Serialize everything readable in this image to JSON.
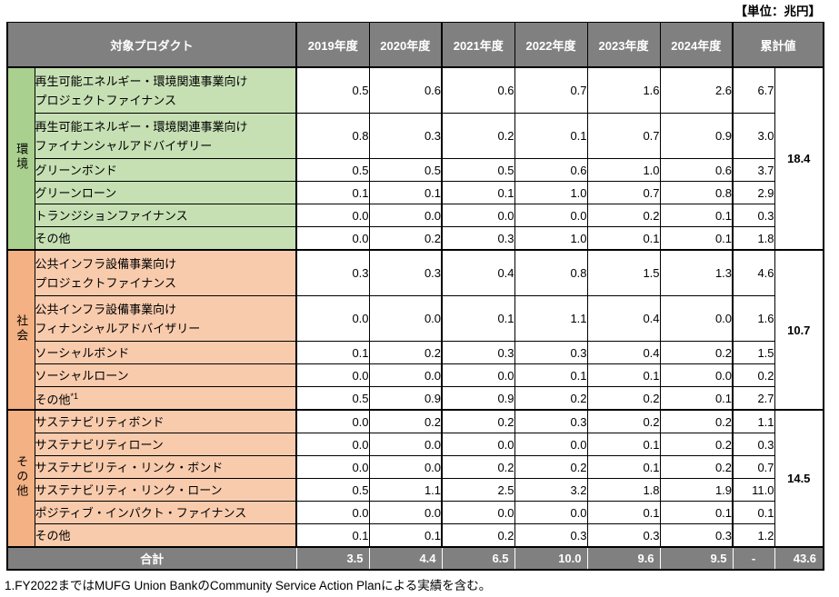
{
  "unit_label": "【単位：兆円】",
  "footnote": "1.FY2022まではMUFG Union BankのCommunity Service Action Planによる実績を含む。",
  "colors": {
    "header_bg": "#808080",
    "header_text": "#ffffff",
    "env_category_bg": "#A9D08E",
    "env_product_bg": "#C6E0B4",
    "social_category_bg": "#F4B183",
    "social_product_bg": "#F8CBAD",
    "other_category_bg": "#F4B183",
    "other_product_bg": "#F8CBAD",
    "border": "#000000"
  },
  "table": {
    "header": {
      "product_label": "対象プロダクト",
      "year_labels": [
        "2019年度",
        "2020年度",
        "2021年度",
        "2022年度",
        "2023年度",
        "2024年度"
      ],
      "cumulative_label": "累計値"
    },
    "sections": [
      {
        "id": "environment",
        "category": "環境",
        "category_bg": "#A9D08E",
        "product_bg": "#C6E0B4",
        "group_total": "18.4",
        "rows": [
          {
            "lines": [
              "再生可能エネルギー・環境関連事業向け",
              "プロジェクトファイナンス"
            ],
            "values": [
              "0.5",
              "0.6",
              "0.6",
              "0.7",
              "1.6",
              "2.6"
            ],
            "cumulative": "6.7"
          },
          {
            "lines": [
              "再生可能エネルギー・環境関連事業向け",
              "ファイナンシャルアドバイザリー"
            ],
            "values": [
              "0.8",
              "0.3",
              "0.2",
              "0.1",
              "0.7",
              "0.9"
            ],
            "cumulative": "3.0"
          },
          {
            "lines": [
              "グリーンボンド"
            ],
            "values": [
              "0.5",
              "0.5",
              "0.5",
              "0.6",
              "1.0",
              "0.6"
            ],
            "cumulative": "3.7"
          },
          {
            "lines": [
              "グリーンローン"
            ],
            "values": [
              "0.1",
              "0.1",
              "0.1",
              "1.0",
              "0.7",
              "0.8"
            ],
            "cumulative": "2.9"
          },
          {
            "lines": [
              "トランジションファイナンス"
            ],
            "values": [
              "0.0",
              "0.0",
              "0.0",
              "0.0",
              "0.2",
              "0.1"
            ],
            "cumulative": "0.3"
          },
          {
            "lines": [
              "その他"
            ],
            "values": [
              "0.0",
              "0.2",
              "0.3",
              "1.0",
              "0.1",
              "0.1"
            ],
            "cumulative": "1.8"
          }
        ]
      },
      {
        "id": "social",
        "category": "社会",
        "category_bg": "#F4B183",
        "product_bg": "#F8CBAD",
        "group_total": "10.7",
        "rows": [
          {
            "lines": [
              "公共インフラ設備事業向け",
              "プロジェクトファイナンス"
            ],
            "values": [
              "0.3",
              "0.3",
              "0.4",
              "0.8",
              "1.5",
              "1.3"
            ],
            "cumulative": "4.6"
          },
          {
            "lines": [
              "公共インフラ設備事業向け",
              "フィナンシャルアドバイザリー"
            ],
            "values": [
              "0.0",
              "0.0",
              "0.1",
              "1.1",
              "0.4",
              "0.0"
            ],
            "cumulative": "1.6"
          },
          {
            "lines": [
              "ソーシャルボンド"
            ],
            "values": [
              "0.1",
              "0.2",
              "0.3",
              "0.3",
              "0.4",
              "0.2"
            ],
            "cumulative": "1.5"
          },
          {
            "lines": [
              "ソーシャルローン"
            ],
            "values": [
              "0.0",
              "0.0",
              "0.0",
              "0.1",
              "0.1",
              "0.0"
            ],
            "cumulative": "0.2"
          },
          {
            "lines": [
              "その他"
            ],
            "sup": "*1",
            "values": [
              "0.5",
              "0.9",
              "0.9",
              "0.2",
              "0.2",
              "0.1"
            ],
            "cumulative": "2.7"
          }
        ]
      },
      {
        "id": "other",
        "category": "その他",
        "category_bg": "#F4B183",
        "product_bg": "#F8CBAD",
        "group_total": "14.5",
        "rows": [
          {
            "lines": [
              "サステナビリティボンド"
            ],
            "values": [
              "0.0",
              "0.2",
              "0.2",
              "0.3",
              "0.2",
              "0.2"
            ],
            "cumulative": "1.1"
          },
          {
            "lines": [
              "サステナビリティローン"
            ],
            "values": [
              "0.0",
              "0.0",
              "0.0",
              "0.0",
              "0.1",
              "0.2"
            ],
            "cumulative": "0.3"
          },
          {
            "lines": [
              "サステナビリティ・リンク・ボンド"
            ],
            "values": [
              "0.0",
              "0.0",
              "0.2",
              "0.2",
              "0.1",
              "0.2"
            ],
            "cumulative": "0.7"
          },
          {
            "lines": [
              "サステナビリティ・リンク・ローン"
            ],
            "values": [
              "0.5",
              "1.1",
              "2.5",
              "3.2",
              "1.8",
              "1.9"
            ],
            "cumulative": "11.0"
          },
          {
            "lines": [
              "ポジティブ・インパクト・ファイナンス"
            ],
            "values": [
              "0.0",
              "0.0",
              "0.0",
              "0.0",
              "0.1",
              "0.1"
            ],
            "cumulative": "0.1"
          },
          {
            "lines": [
              "その他"
            ],
            "values": [
              "0.1",
              "0.1",
              "0.2",
              "0.3",
              "0.3",
              "0.3"
            ],
            "cumulative": "1.2"
          }
        ]
      }
    ],
    "total_row": {
      "label": "合計",
      "values": [
        "3.5",
        "4.4",
        "6.5",
        "10.0",
        "9.6",
        "9.5"
      ],
      "cumulative": "-",
      "group_total": "43.6"
    }
  }
}
